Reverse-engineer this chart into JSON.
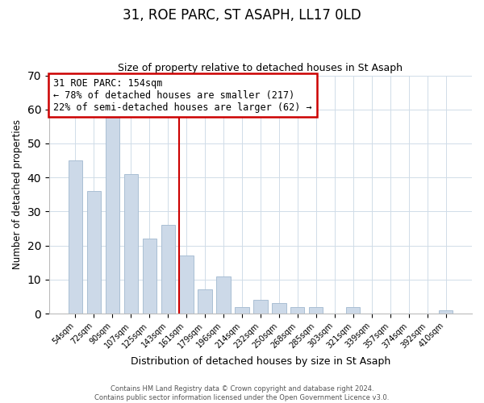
{
  "title": "31, ROE PARC, ST ASAPH, LL17 0LD",
  "subtitle": "Size of property relative to detached houses in St Asaph",
  "xlabel": "Distribution of detached houses by size in St Asaph",
  "ylabel": "Number of detached properties",
  "bar_color": "#ccd9e8",
  "bar_edge_color": "#aabfd4",
  "categories": [
    "54sqm",
    "72sqm",
    "90sqm",
    "107sqm",
    "125sqm",
    "143sqm",
    "161sqm",
    "179sqm",
    "196sqm",
    "214sqm",
    "232sqm",
    "250sqm",
    "268sqm",
    "285sqm",
    "303sqm",
    "321sqm",
    "339sqm",
    "357sqm",
    "374sqm",
    "392sqm",
    "410sqm"
  ],
  "values": [
    45,
    36,
    58,
    41,
    22,
    26,
    17,
    7,
    11,
    2,
    4,
    3,
    2,
    2,
    0,
    2,
    0,
    0,
    0,
    0,
    1
  ],
  "vline_index": 6,
  "vline_color": "#cc0000",
  "annotation_text": "31 ROE PARC: 154sqm\n← 78% of detached houses are smaller (217)\n22% of semi-detached houses are larger (62) →",
  "ylim": [
    0,
    70
  ],
  "yticks": [
    0,
    10,
    20,
    30,
    40,
    50,
    60,
    70
  ],
  "footer_line1": "Contains HM Land Registry data © Crown copyright and database right 2024.",
  "footer_line2": "Contains public sector information licensed under the Open Government Licence v3.0.",
  "bg_color": "#ffffff",
  "grid_color": "#d0dce8"
}
